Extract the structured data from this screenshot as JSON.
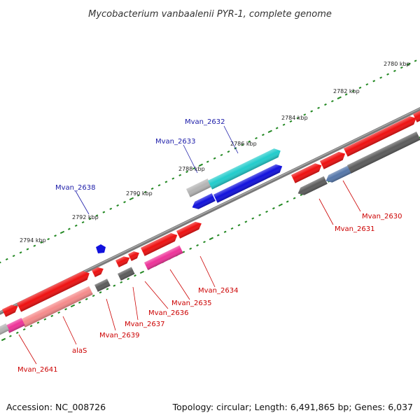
{
  "title": "Mycobacterium vanbaalenii PYR-1, complete genome",
  "accession": "Accession: NC_008726",
  "summary": "Topology: circular; Length: 6,491,865 bp; Genes: 6,037",
  "colors": {
    "forward_cds": "#ee1111",
    "reverse_cds": "#5c5c5c",
    "backbone": "#808080",
    "tick_dots": "#228822",
    "rna_feature": "#1111dd",
    "teal_feature": "#22cccc",
    "pink_feature": "#ee3399",
    "light_gray_feature": "#b4b4b4",
    "salmon_feature": "#f58b8b",
    "blue_label": "#1a1aa8",
    "red_label": "#cc0000"
  },
  "scale_labels": [
    "2780 kbp",
    "2782 kbp",
    "2784 kbp",
    "2786 kbp",
    "2788 kbp",
    "2790 kbp",
    "2792 kbp",
    "2794 kbp"
  ],
  "gene_labels": [
    {
      "text": "Mvan_2632",
      "color": "blue"
    },
    {
      "text": "Mvan_2633",
      "color": "blue"
    },
    {
      "text": "Mvan_2638",
      "color": "blue"
    },
    {
      "text": "Mvan_2630",
      "color": "red"
    },
    {
      "text": "Mvan_2631",
      "color": "red"
    },
    {
      "text": "Mvan_2634",
      "color": "red"
    },
    {
      "text": "Mvan_2635",
      "color": "red"
    },
    {
      "text": "Mvan_2636",
      "color": "red"
    },
    {
      "text": "Mvan_2637",
      "color": "red"
    },
    {
      "text": "Mvan_2639",
      "color": "red"
    },
    {
      "text": "alaS",
      "color": "red"
    },
    {
      "text": "Mvan_2641",
      "color": "red"
    }
  ]
}
